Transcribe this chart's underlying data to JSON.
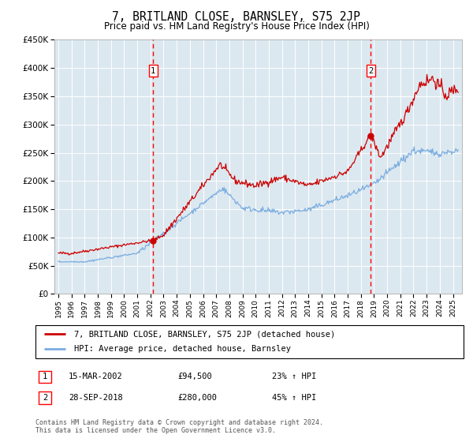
{
  "title": "7, BRITLAND CLOSE, BARNSLEY, S75 2JP",
  "subtitle": "Price paid vs. HM Land Registry's House Price Index (HPI)",
  "title_fontsize": 10.5,
  "subtitle_fontsize": 8.5,
  "ylim": [
    0,
    450000
  ],
  "yticks": [
    0,
    50000,
    100000,
    150000,
    200000,
    250000,
    300000,
    350000,
    400000,
    450000
  ],
  "xlim_start": 1994.7,
  "xlim_end": 2025.7,
  "background_color": "#ffffff",
  "plot_bg_color": "#dce8f0",
  "grid_color": "#ffffff",
  "red_line_color": "#cc0000",
  "blue_line_color": "#7aade0",
  "marker1_x": 2002.21,
  "marker1_y": 94500,
  "marker1_label": "1",
  "marker1_date": "15-MAR-2002",
  "marker1_price": "£94,500",
  "marker1_hpi": "23% ↑ HPI",
  "marker2_x": 2018.75,
  "marker2_y": 280000,
  "marker2_label": "2",
  "marker2_date": "28-SEP-2018",
  "marker2_price": "£280,000",
  "marker2_hpi": "45% ↑ HPI",
  "legend_line1": "7, BRITLAND CLOSE, BARNSLEY, S75 2JP (detached house)",
  "legend_line2": "HPI: Average price, detached house, Barnsley",
  "footnote": "Contains HM Land Registry data © Crown copyright and database right 2024.\nThis data is licensed under the Open Government Licence v3.0."
}
